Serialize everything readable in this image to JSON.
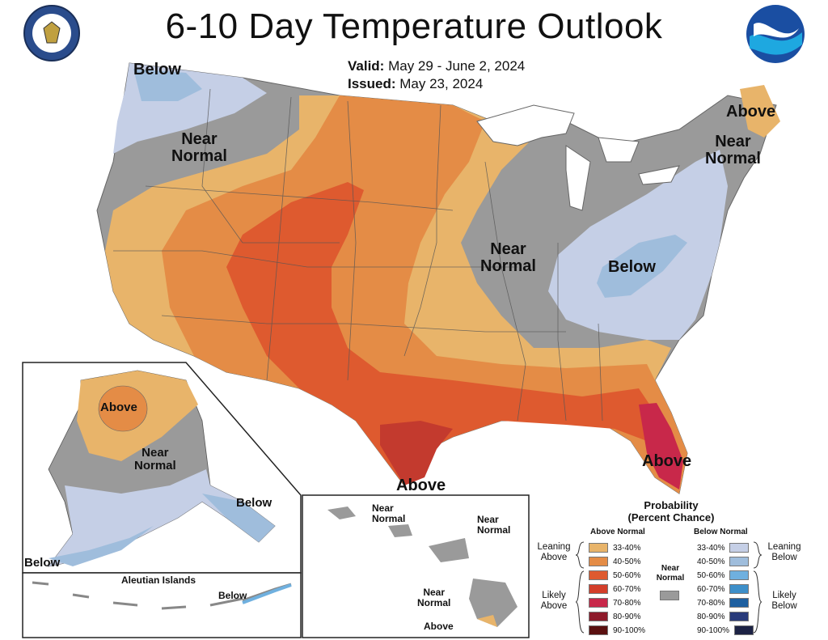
{
  "header": {
    "title": "6-10 Day Temperature Outlook",
    "valid_label": "Valid:",
    "valid_value": "May 29 - June 2, 2024",
    "issued_label": "Issued:",
    "issued_value": "May 23, 2024"
  },
  "logos": {
    "left": "department-of-commerce-seal",
    "right": "noaa-logo"
  },
  "map_labels": {
    "below_nw": "Below",
    "near_normal_nw": [
      "Near",
      "Normal"
    ],
    "above_ne": "Above",
    "near_normal_ne": [
      "Near",
      "Normal"
    ],
    "near_normal_mid": [
      "Near",
      "Normal"
    ],
    "below_east": "Below",
    "above_fl": "Above",
    "above_tx": "Above"
  },
  "alaska": {
    "above": "Above",
    "near_normal": [
      "Near",
      "Normal"
    ],
    "below_se": "Below",
    "below_sw": "Below",
    "aleutian_title": "Aleutian Islands",
    "aleutian_below": "Below"
  },
  "hawaii": {
    "near_normal_1": [
      "Near",
      "Normal"
    ],
    "near_normal_2": [
      "Near",
      "Normal"
    ],
    "near_normal_3": [
      "Near",
      "Normal"
    ],
    "above": "Above"
  },
  "legend": {
    "title": [
      "Probability",
      "(Percent Chance)"
    ],
    "above_header": "Above Normal",
    "below_header": "Below Normal",
    "leaning_above": [
      "Leaning",
      "Above"
    ],
    "likely_above": [
      "Likely",
      "Above"
    ],
    "leaning_below": [
      "Leaning",
      "Below"
    ],
    "likely_below": [
      "Likely",
      "Below"
    ],
    "near_normal": [
      "Near",
      "Normal"
    ],
    "above_classes": [
      {
        "label": "33-40%",
        "color": "#e8b46a"
      },
      {
        "label": "40-50%",
        "color": "#e48c46"
      },
      {
        "label": "50-60%",
        "color": "#de5a2f"
      },
      {
        "label": "60-70%",
        "color": "#d33e2a"
      },
      {
        "label": "70-80%",
        "color": "#c8284a"
      },
      {
        "label": "80-90%",
        "color": "#8d1a2a"
      },
      {
        "label": "90-100%",
        "color": "#5a1010"
      }
    ],
    "below_classes": [
      {
        "label": "33-40%",
        "color": "#c5cfe6"
      },
      {
        "label": "40-50%",
        "color": "#9fbddc"
      },
      {
        "label": "50-60%",
        "color": "#6fb0df"
      },
      {
        "label": "60-70%",
        "color": "#3d8fc9"
      },
      {
        "label": "70-80%",
        "color": "#1d5fa0"
      },
      {
        "label": "80-90%",
        "color": "#283a7a"
      },
      {
        "label": "90-100%",
        "color": "#1c2244"
      }
    ],
    "near_normal_color": "#9a9a9a"
  }
}
